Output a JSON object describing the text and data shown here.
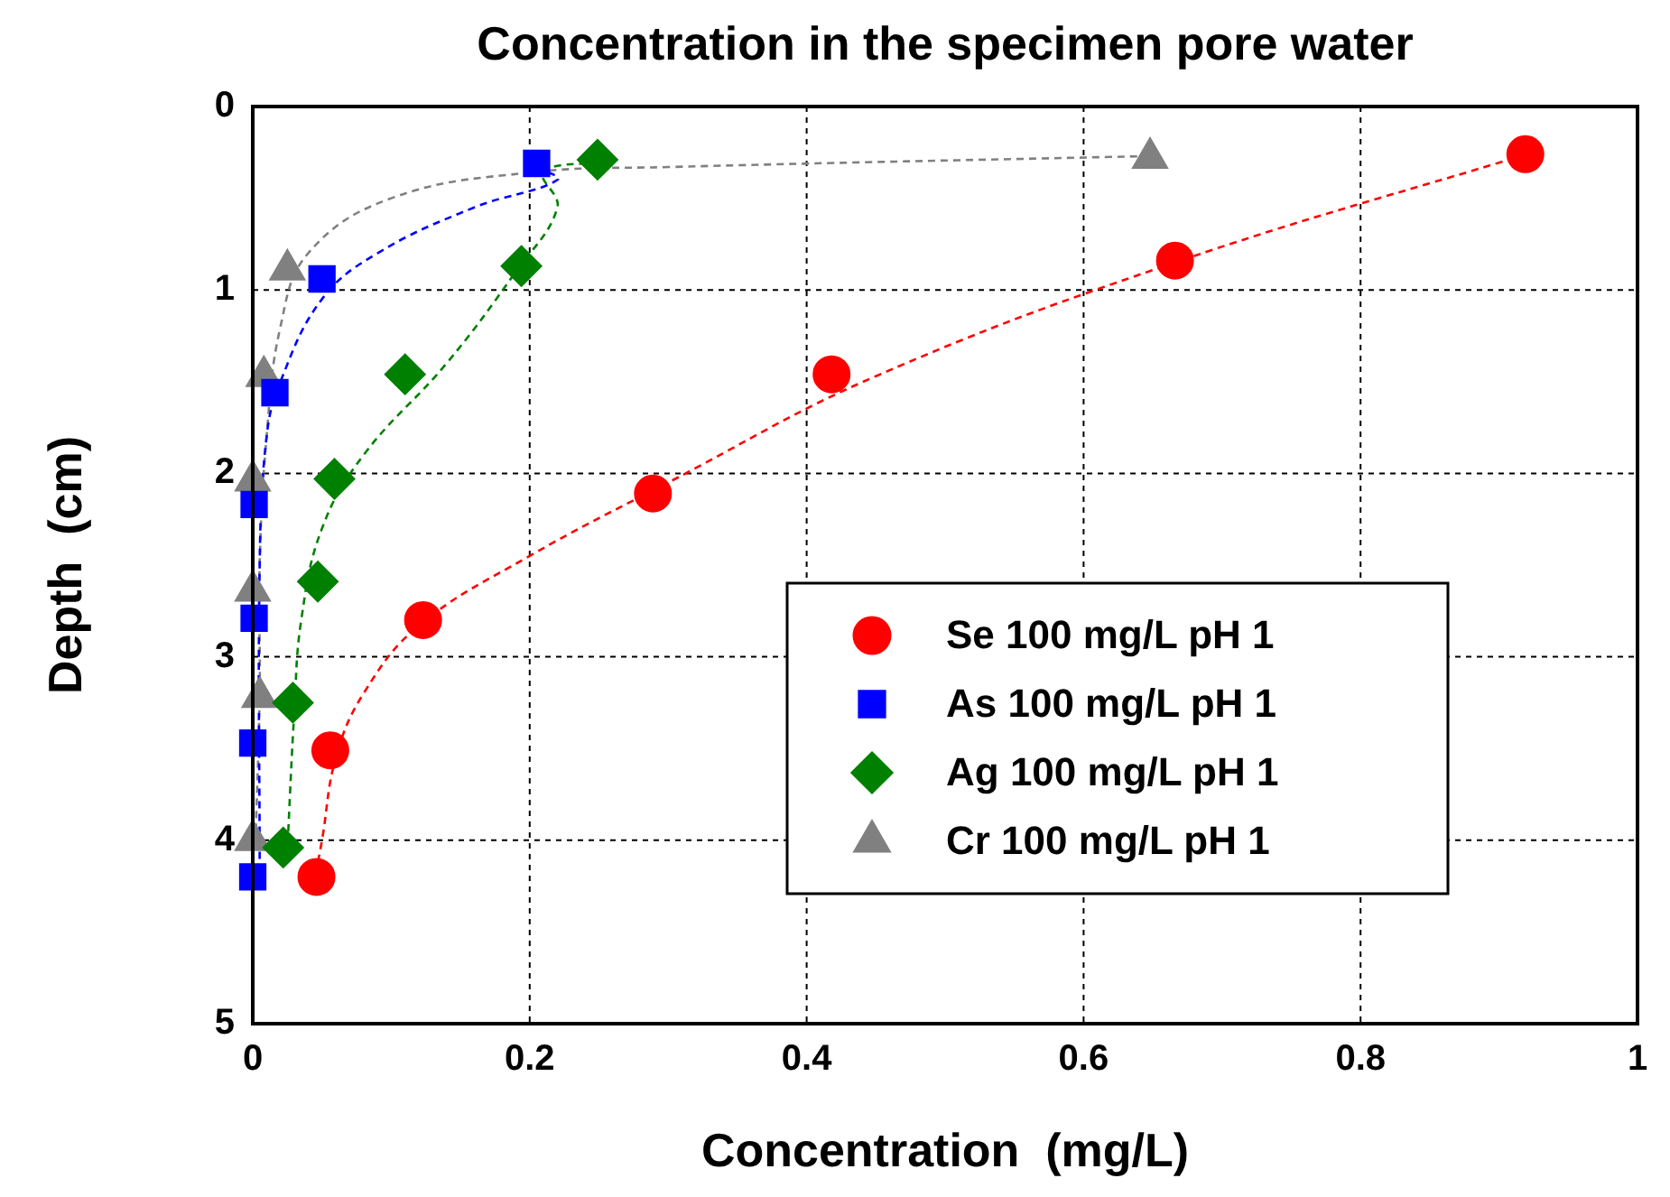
{
  "chart_data": {
    "type": "scatter",
    "title": "Concentration in the specimen pore water",
    "xlabel": "Concentration  (mg/L)",
    "ylabel": "Depth  (cm)",
    "xlim": [
      0,
      1
    ],
    "xticks": [
      0,
      0.2,
      0.4,
      0.6,
      0.8,
      1
    ],
    "ylim": [
      5,
      0
    ],
    "yticks": [
      0,
      1,
      2,
      3,
      4,
      5
    ],
    "grid": true,
    "legend": "bottom right",
    "series": [
      {
        "name": "Se 100 mg/L pH 1",
        "color": "#ff0000",
        "marker": "circle",
        "x": [
          0.919,
          0.666,
          0.418,
          0.289,
          0.123,
          0.056,
          0.046
        ],
        "values": [
          0.26,
          0.84,
          1.46,
          2.11,
          2.8,
          3.51,
          4.2
        ]
      },
      {
        "name": "As 100 mg/L pH 1",
        "color": "#0000ff",
        "marker": "square",
        "x": [
          0.205,
          0.05,
          0.016,
          0.001,
          0.001,
          0,
          0
        ],
        "values": [
          0.31,
          0.94,
          1.56,
          2.17,
          2.79,
          3.47,
          4.2
        ]
      },
      {
        "name": "Ag 100 mg/L pH 1",
        "color": "#008000",
        "marker": "diamond",
        "x": [
          0.249,
          0.194,
          0.11,
          0.059,
          0.047,
          0.029,
          0.022
        ],
        "values": [
          0.29,
          0.87,
          1.46,
          2.03,
          2.59,
          3.25,
          4.04
        ]
      },
      {
        "name": "Cr 100 mg/L pH 1",
        "color": "#808080",
        "marker": "triangle",
        "x": [
          0.648,
          0.025,
          0.008,
          0,
          0,
          0.005,
          0
        ],
        "values": [
          0.28,
          0.89,
          1.47,
          2.04,
          2.64,
          3.22,
          4.0
        ]
      },
      {
        "type": "line",
        "color": "#ff0000",
        "marker": "none",
        "line_style": "dashed",
        "x": [
          0.92,
          0.67,
          0.45,
          0.3,
          0.2,
          0.12,
          0.08,
          0.06,
          0.05,
          0.045
        ],
        "values": [
          0.26,
          0.84,
          1.47,
          2.05,
          2.45,
          2.83,
          3.2,
          3.55,
          4.0,
          4.2
        ]
      },
      {
        "type": "line",
        "color": "#0000ff",
        "marker": "none",
        "line_style": "dashed",
        "x": [
          0.205,
          0.22,
          0.16,
          0.09,
          0.05,
          0.02,
          0.01,
          0.005,
          0.005
        ],
        "values": [
          0.33,
          0.4,
          0.55,
          0.8,
          1.05,
          1.5,
          1.8,
          2.5,
          4.2
        ]
      },
      {
        "type": "line",
        "color": "#008000",
        "marker": "none",
        "line_style": "dashed",
        "x": [
          0.25,
          0.21,
          0.22,
          0.19,
          0.14,
          0.08,
          0.05,
          0.035,
          0.03,
          0.025
        ],
        "values": [
          0.3,
          0.36,
          0.55,
          0.9,
          1.4,
          1.9,
          2.3,
          2.8,
          3.3,
          4.05
        ]
      },
      {
        "type": "line",
        "color": "#808080",
        "marker": "none",
        "line_style": "dashed",
        "x": [
          0.648,
          0.3,
          0.2,
          0.1,
          0.04,
          0.02,
          0.01,
          0.005,
          0.005,
          0.002
        ],
        "values": [
          0.27,
          0.33,
          0.36,
          0.5,
          0.8,
          1.2,
          1.8,
          2.5,
          3.2,
          4.0
        ]
      }
    ]
  }
}
